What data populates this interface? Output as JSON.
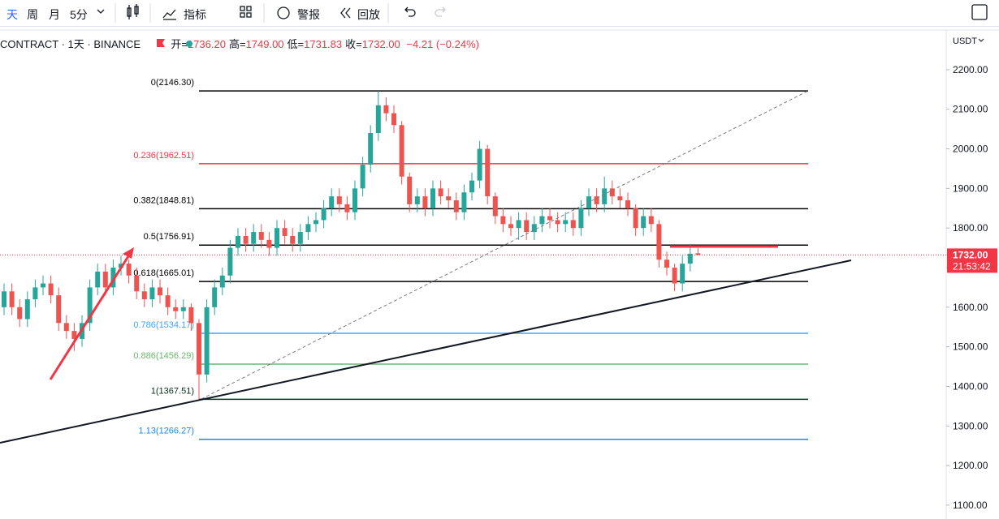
{
  "toolbar": {
    "items": [
      "天",
      "周",
      "月",
      "5分",
      "指标",
      "警报",
      "回放"
    ]
  },
  "header": {
    "symbol": "CONTRACT · 1天 · BINANCE",
    "ohlc": [
      {
        "label": "开=",
        "value": "1736.20"
      },
      {
        "label": "高=",
        "value": "1749.00"
      },
      {
        "label": "低=",
        "value": "1731.83"
      },
      {
        "label": "收=",
        "value": "1732.00"
      }
    ],
    "change": "−4.21 (−0.24%)"
  },
  "chart_data": {
    "type": "candlestick",
    "currency": "USDT",
    "up_color": "#26a69a",
    "down_color": "#ef5350",
    "ylim": [
      1065,
      2249
    ],
    "yticks": [
      {
        "value": 1100,
        "label": "1100.00"
      },
      {
        "value": 1200,
        "label": "1200.00"
      },
      {
        "value": 1300,
        "label": "1300.00"
      },
      {
        "value": 1400,
        "label": "1400.00"
      },
      {
        "value": 1500,
        "label": "1500.00"
      },
      {
        "value": 1600,
        "label": "1600.00"
      },
      {
        "value": 1700,
        "label": "1700.00"
      },
      {
        "value": 1800,
        "label": "1800.00"
      },
      {
        "value": 1900,
        "label": "1900.00"
      },
      {
        "value": 2000,
        "label": "2000.00"
      },
      {
        "value": 2100,
        "label": "2100.00"
      },
      {
        "value": 2200,
        "label": "2200.00"
      }
    ],
    "last_price": {
      "value": 1732,
      "label": "1732.00"
    },
    "countdown": "21:53:42",
    "fib_levels": [
      {
        "label": "0(2146.30)",
        "price": 2146.3,
        "color": "#000000"
      },
      {
        "label": "0.236(1962.51)",
        "price": 1962.51,
        "color": "#f23645"
      },
      {
        "label": "0.382(1848.81)",
        "price": 1848.81,
        "color": "#000000"
      },
      {
        "label": "0.5(1756.91)",
        "price": 1756.91,
        "color": "#000000"
      },
      {
        "label": "0.618(1665.01)",
        "price": 1665.01,
        "color": "#000000"
      },
      {
        "label": "0.786(1534.17)",
        "price": 1534.17,
        "color": "#42a5f5"
      },
      {
        "label": "0.886(1456.29)",
        "price": 1456.29,
        "color": "#66bb6a"
      },
      {
        "label": "1(1367.51)",
        "price": 1367.51,
        "color": "#0b2e1e"
      },
      {
        "label": "1.13(1266.27)",
        "price": 1266.27,
        "color": "#1e88e5"
      }
    ],
    "open": [
      1600,
      1640,
      1600,
      1570,
      1620,
      1650,
      1660,
      1630,
      1560,
      1540,
      1520,
      1560,
      1650,
      1690,
      1650,
      1700,
      1710,
      1680,
      1640,
      1620,
      1650,
      1630,
      1600,
      1590,
      1600,
      1560,
      1430,
      1600,
      1650,
      1680,
      1750,
      1780,
      1760,
      1790,
      1770,
      1750,
      1800,
      1780,
      1760,
      1790,
      1810,
      1820,
      1850,
      1880,
      1860,
      1840,
      1900,
      1960,
      2040,
      2110,
      2090,
      2060,
      1930,
      1860,
      1880,
      1850,
      1900,
      1880,
      1870,
      1840,
      1890,
      1920,
      2000,
      1880,
      1830,
      1810,
      1800,
      1820,
      1790,
      1810,
      1830,
      1820,
      1810,
      1820,
      1800,
      1850,
      1880,
      1860,
      1900,
      1880,
      1870,
      1850,
      1800,
      1830,
      1810,
      1720,
      1700,
      1660,
      1710,
      1736.2
    ],
    "high": [
      1660,
      1660,
      1620,
      1640,
      1670,
      1680,
      1680,
      1650,
      1580,
      1560,
      1580,
      1670,
      1710,
      1710,
      1720,
      1730,
      1720,
      1700,
      1660,
      1670,
      1670,
      1650,
      1620,
      1620,
      1610,
      1570,
      1620,
      1670,
      1700,
      1770,
      1800,
      1800,
      1810,
      1810,
      1790,
      1820,
      1820,
      1800,
      1810,
      1830,
      1840,
      1870,
      1900,
      1900,
      1880,
      1920,
      1980,
      2060,
      2146.3,
      2130,
      2110,
      2070,
      1940,
      1900,
      1900,
      1920,
      1920,
      1900,
      1890,
      1910,
      1940,
      2020,
      2010,
      1890,
      1850,
      1830,
      1840,
      1840,
      1830,
      1850,
      1850,
      1840,
      1840,
      1840,
      1870,
      1900,
      1900,
      1930,
      1920,
      1900,
      1890,
      1860,
      1850,
      1850,
      1820,
      1740,
      1710,
      1730,
      1760,
      1749
    ],
    "low": [
      1580,
      1580,
      1550,
      1550,
      1600,
      1630,
      1610,
      1540,
      1520,
      1490,
      1500,
      1540,
      1630,
      1630,
      1630,
      1680,
      1660,
      1620,
      1600,
      1600,
      1610,
      1580,
      1570,
      1570,
      1540,
      1367.51,
      1410,
      1580,
      1630,
      1660,
      1730,
      1740,
      1740,
      1750,
      1730,
      1730,
      1760,
      1740,
      1740,
      1770,
      1790,
      1800,
      1830,
      1840,
      1820,
      1820,
      1880,
      1940,
      2020,
      2070,
      2040,
      1910,
      1840,
      1840,
      1830,
      1830,
      1860,
      1850,
      1820,
      1820,
      1870,
      1900,
      1860,
      1810,
      1790,
      1780,
      1770,
      1770,
      1770,
      1790,
      1800,
      1790,
      1790,
      1780,
      1780,
      1830,
      1840,
      1840,
      1860,
      1850,
      1830,
      1780,
      1780,
      1790,
      1700,
      1680,
      1640,
      1640,
      1690,
      1731.83
    ],
    "close": [
      1640,
      1600,
      1570,
      1620,
      1650,
      1660,
      1630,
      1560,
      1540,
      1520,
      1560,
      1650,
      1690,
      1650,
      1700,
      1710,
      1680,
      1640,
      1620,
      1650,
      1630,
      1600,
      1590,
      1600,
      1560,
      1430,
      1600,
      1650,
      1680,
      1750,
      1780,
      1760,
      1790,
      1770,
      1750,
      1800,
      1780,
      1760,
      1790,
      1810,
      1820,
      1850,
      1880,
      1860,
      1840,
      1900,
      1960,
      2040,
      2110,
      2090,
      2060,
      1930,
      1860,
      1880,
      1850,
      1900,
      1880,
      1870,
      1840,
      1890,
      1920,
      2000,
      1880,
      1830,
      1810,
      1800,
      1820,
      1790,
      1810,
      1830,
      1820,
      1810,
      1820,
      1800,
      1850,
      1880,
      1860,
      1900,
      1880,
      1870,
      1850,
      1800,
      1830,
      1810,
      1720,
      1700,
      1660,
      1710,
      1735,
      1732
    ]
  }
}
